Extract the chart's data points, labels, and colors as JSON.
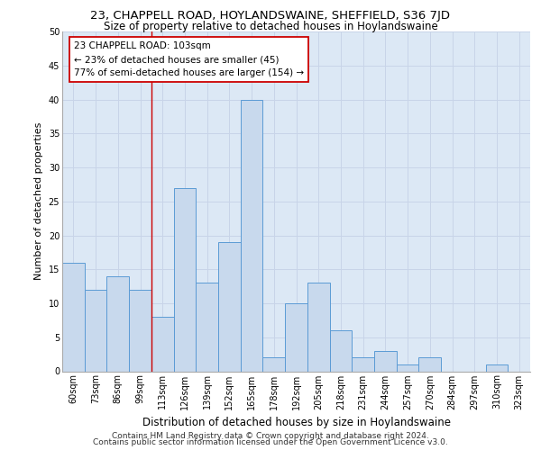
{
  "title1": "23, CHAPPELL ROAD, HOYLANDSWAINE, SHEFFIELD, S36 7JD",
  "title2": "Size of property relative to detached houses in Hoylandswaine",
  "xlabel": "Distribution of detached houses by size in Hoylandswaine",
  "ylabel": "Number of detached properties",
  "categories": [
    "60sqm",
    "73sqm",
    "86sqm",
    "99sqm",
    "113sqm",
    "126sqm",
    "139sqm",
    "152sqm",
    "165sqm",
    "178sqm",
    "192sqm",
    "205sqm",
    "218sqm",
    "231sqm",
    "244sqm",
    "257sqm",
    "270sqm",
    "284sqm",
    "297sqm",
    "310sqm",
    "323sqm"
  ],
  "values": [
    16,
    12,
    14,
    12,
    8,
    27,
    13,
    19,
    40,
    2,
    10,
    13,
    6,
    2,
    3,
    1,
    2,
    0,
    0,
    1,
    0
  ],
  "bar_color": "#c8d9ed",
  "bar_edge_color": "#5b9bd5",
  "grid_color": "#c8d4e8",
  "background_color": "#dce8f5",
  "vline_x": 3.5,
  "vline_color": "#cc0000",
  "annotation_box_text": "23 CHAPPELL ROAD: 103sqm\n← 23% of detached houses are smaller (45)\n77% of semi-detached houses are larger (154) →",
  "ylim": [
    0,
    50
  ],
  "yticks": [
    0,
    5,
    10,
    15,
    20,
    25,
    30,
    35,
    40,
    45,
    50
  ],
  "footnote1": "Contains HM Land Registry data © Crown copyright and database right 2024.",
  "footnote2": "Contains public sector information licensed under the Open Government Licence v3.0.",
  "title1_fontsize": 9.5,
  "title2_fontsize": 8.5,
  "xlabel_fontsize": 8.5,
  "ylabel_fontsize": 8,
  "tick_fontsize": 7,
  "footnote_fontsize": 6.5,
  "annotation_fontsize": 7.5
}
